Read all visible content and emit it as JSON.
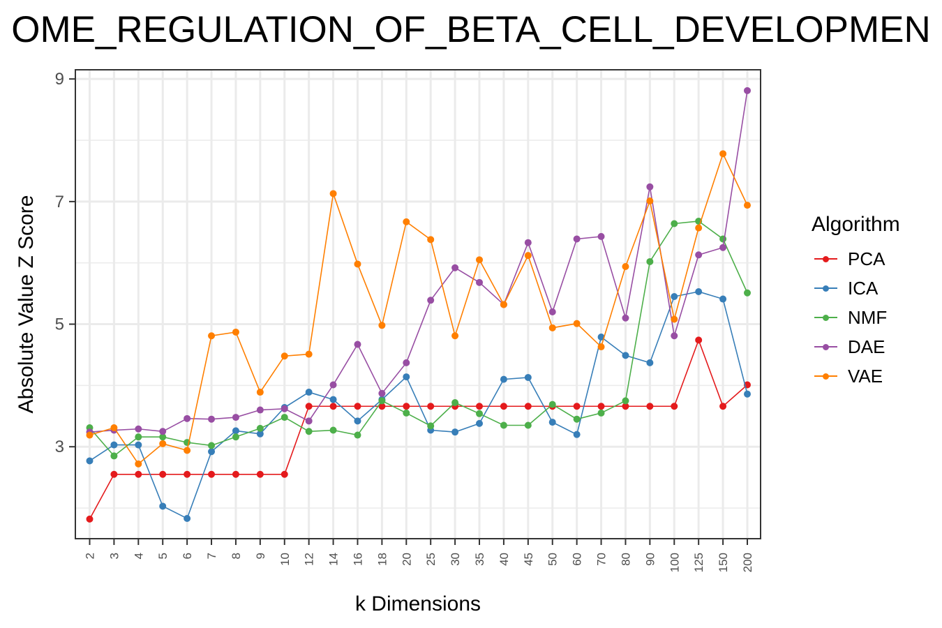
{
  "title": "OME_REGULATION_OF_BETA_CELL_DEVELOPMEN",
  "chart_data": {
    "type": "line",
    "title": "OME_REGULATION_OF_BETA_CELL_DEVELOPMEN",
    "xlabel": "k Dimensions",
    "ylabel": "Absolute Value Z Score",
    "categories": [
      "2",
      "3",
      "4",
      "5",
      "6",
      "7",
      "8",
      "9",
      "10",
      "12",
      "14",
      "16",
      "18",
      "20",
      "25",
      "30",
      "35",
      "40",
      "45",
      "50",
      "60",
      "70",
      "80",
      "90",
      "100",
      "125",
      "150",
      "200"
    ],
    "ylim": [
      1.5,
      9.15
    ],
    "yticks": [
      "3",
      "5",
      "7",
      "9"
    ],
    "grid": true,
    "legend_title": "Algorithm",
    "legend_position": "right",
    "series": [
      {
        "name": "PCA",
        "color": "#E41A1C",
        "values": [
          1.82,
          2.55,
          2.55,
          2.55,
          2.55,
          2.55,
          2.55,
          2.55,
          2.55,
          3.66,
          3.66,
          3.66,
          3.66,
          3.66,
          3.66,
          3.66,
          3.66,
          3.66,
          3.66,
          3.66,
          3.66,
          3.66,
          3.66,
          3.66,
          3.66,
          4.74,
          3.66,
          4.01
        ]
      },
      {
        "name": "ICA",
        "color": "#377EB8",
        "values": [
          2.77,
          3.03,
          3.03,
          2.03,
          1.83,
          2.92,
          3.26,
          3.21,
          3.64,
          3.89,
          3.77,
          3.42,
          3.77,
          4.14,
          3.27,
          3.24,
          3.38,
          4.1,
          4.13,
          3.4,
          3.2,
          4.79,
          4.49,
          4.37,
          5.45,
          5.53,
          5.41,
          3.86
        ]
      },
      {
        "name": "NMF",
        "color": "#4DAF4A",
        "values": [
          3.31,
          2.85,
          3.16,
          3.16,
          3.07,
          3.02,
          3.16,
          3.3,
          3.48,
          3.25,
          3.27,
          3.19,
          3.75,
          3.55,
          3.34,
          3.72,
          3.54,
          3.35,
          3.35,
          3.69,
          3.45,
          3.55,
          3.75,
          6.02,
          6.64,
          6.68,
          6.39,
          5.51
        ]
      },
      {
        "name": "DAE",
        "color": "#984EA3",
        "values": [
          3.24,
          3.27,
          3.29,
          3.25,
          3.46,
          3.45,
          3.48,
          3.6,
          3.62,
          3.42,
          4.01,
          4.67,
          3.87,
          4.37,
          5.39,
          5.92,
          5.68,
          5.32,
          6.33,
          5.2,
          6.39,
          6.43,
          5.1,
          7.24,
          4.81,
          6.13,
          6.25,
          8.81
        ]
      },
      {
        "name": "VAE",
        "color": "#FF7F00",
        "values": [
          3.19,
          3.31,
          2.72,
          3.05,
          2.94,
          4.81,
          4.87,
          3.89,
          4.48,
          4.51,
          7.13,
          5.98,
          4.98,
          6.67,
          6.38,
          4.81,
          6.05,
          5.32,
          6.12,
          4.94,
          5.01,
          4.63,
          5.94,
          7.01,
          5.08,
          6.57,
          7.78,
          6.94
        ]
      }
    ]
  }
}
